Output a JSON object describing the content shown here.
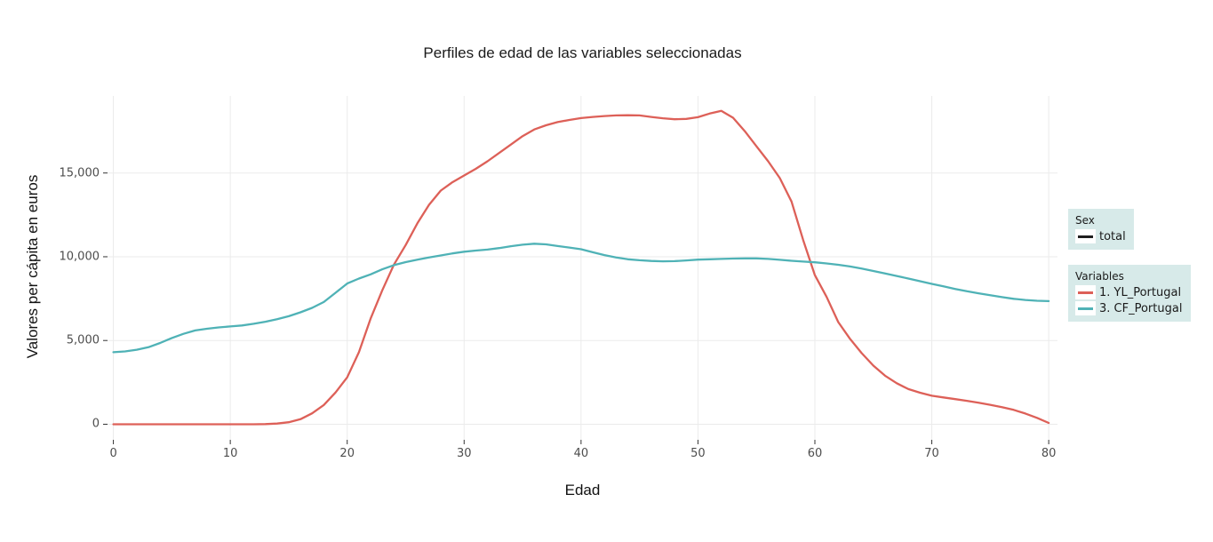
{
  "figure": {
    "title": "Perfiles de edad de las variables seleccionadas"
  },
  "colors": {
    "series_yl": "#dd6058",
    "series_cf": "#4fb2b6",
    "grid": "#ebebeb",
    "tick_mark": "#333333",
    "tick_text": "#4d4d4d",
    "legend_bg": "#d7eae9",
    "legend_key_bg": "#ffffff",
    "sex_total_line": "#1f1f1f"
  },
  "chart_data": {
    "type": "line",
    "title": "Perfiles de edad de las variables seleccionadas",
    "xlabel": "Edad",
    "ylabel": "Valores per cápita en euros",
    "grid": true,
    "legend_position": "right",
    "xlim": [
      -0.5,
      80.75
    ],
    "ylim": [
      -930,
      19600
    ],
    "x_ticks": [
      0,
      10,
      20,
      30,
      40,
      50,
      60,
      70,
      80
    ],
    "x_tick_labels": [
      "0",
      "10",
      "20",
      "30",
      "40",
      "50",
      "60",
      "70",
      "80"
    ],
    "y_ticks": [
      0,
      5000,
      10000,
      15000
    ],
    "y_tick_labels": [
      "0",
      "5,000",
      "10,000",
      "15,000"
    ],
    "x": [
      0,
      1,
      2,
      3,
      4,
      5,
      6,
      7,
      8,
      9,
      10,
      11,
      12,
      13,
      14,
      15,
      16,
      17,
      18,
      19,
      20,
      21,
      22,
      23,
      24,
      25,
      26,
      27,
      28,
      29,
      30,
      31,
      32,
      33,
      34,
      35,
      36,
      37,
      38,
      39,
      40,
      41,
      42,
      43,
      44,
      45,
      46,
      47,
      48,
      49,
      50,
      51,
      52,
      53,
      54,
      55,
      56,
      57,
      58,
      59,
      60,
      61,
      62,
      63,
      64,
      65,
      66,
      67,
      68,
      69,
      70,
      71,
      72,
      73,
      74,
      75,
      76,
      77,
      78,
      79,
      80
    ],
    "series": [
      {
        "name": "1. YL_Portugal",
        "color": "#dd6058",
        "values": [
          0,
          0,
          0,
          0,
          0,
          0,
          0,
          0,
          0,
          0,
          0,
          0,
          0,
          10,
          40,
          120,
          300,
          650,
          1150,
          1900,
          2800,
          4300,
          6300,
          8000,
          9530,
          10700,
          12000,
          13100,
          13950,
          14450,
          14850,
          15250,
          15700,
          16200,
          16700,
          17200,
          17600,
          17850,
          18040,
          18170,
          18280,
          18350,
          18400,
          18440,
          18450,
          18440,
          18350,
          18270,
          18210,
          18230,
          18330,
          18550,
          18710,
          18300,
          17500,
          16600,
          15700,
          14700,
          13300,
          11000,
          8900,
          7600,
          6100,
          5100,
          4250,
          3500,
          2900,
          2450,
          2100,
          1880,
          1700,
          1600,
          1500,
          1400,
          1280,
          1160,
          1020,
          860,
          640,
          380,
          80
        ]
      },
      {
        "name": "3. CF_Portugal",
        "color": "#4fb2b6",
        "values": [
          4300,
          4350,
          4450,
          4600,
          4850,
          5150,
          5400,
          5600,
          5700,
          5780,
          5840,
          5900,
          6000,
          6120,
          6270,
          6450,
          6680,
          6950,
          7300,
          7850,
          8400,
          8700,
          8950,
          9250,
          9500,
          9680,
          9830,
          9960,
          10080,
          10200,
          10300,
          10370,
          10430,
          10520,
          10630,
          10720,
          10780,
          10740,
          10640,
          10550,
          10450,
          10270,
          10100,
          9960,
          9850,
          9790,
          9750,
          9730,
          9740,
          9780,
          9830,
          9850,
          9870,
          9890,
          9900,
          9900,
          9870,
          9820,
          9760,
          9710,
          9670,
          9600,
          9520,
          9420,
          9290,
          9150,
          9000,
          8850,
          8700,
          8540,
          8380,
          8230,
          8080,
          7940,
          7820,
          7700,
          7590,
          7490,
          7420,
          7370,
          7350
        ]
      }
    ]
  },
  "legends": [
    {
      "title": "Sex",
      "items": [
        {
          "label": "total",
          "color": "#1f1f1f"
        }
      ]
    },
    {
      "title": "Variables",
      "items": [
        {
          "label": "1. YL_Portugal",
          "color": "#dd6058"
        },
        {
          "label": "3. CF_Portugal",
          "color": "#4fb2b6"
        }
      ]
    }
  ]
}
